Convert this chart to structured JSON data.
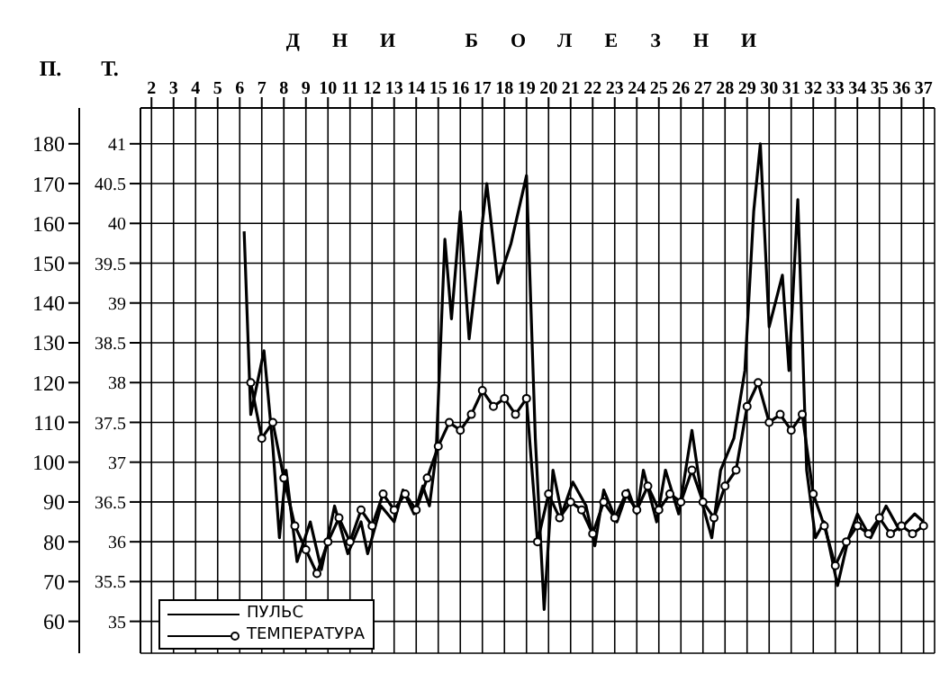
{
  "chart_data": {
    "type": "line",
    "xlabel": "ДНИ БОЛЕЗНИ",
    "ylabel": "П.",
    "y2label": "Т.",
    "xlim": [
      1.5,
      37.5
    ],
    "xticks": [
      2,
      3,
      4,
      5,
      6,
      7,
      8,
      9,
      10,
      11,
      12,
      13,
      14,
      15,
      16,
      17,
      18,
      19,
      20,
      21,
      22,
      23,
      24,
      25,
      26,
      27,
      28,
      29,
      30,
      31,
      32,
      33,
      34,
      35,
      36,
      37
    ],
    "ylim": [
      52,
      189
    ],
    "yticks": [
      60,
      70,
      80,
      90,
      100,
      110,
      120,
      130,
      140,
      150,
      160,
      170,
      180
    ],
    "y2lim": [
      34.6,
      41.45
    ],
    "y2ticks": [
      35,
      35.5,
      36,
      36.5,
      37,
      37.5,
      38,
      38.5,
      39,
      39.5,
      40,
      40.5,
      41
    ],
    "grid": true,
    "legend": "bottom left",
    "series": [
      {
        "name": "ПУЛЬС",
        "color": "#000000",
        "x": [
          6.2,
          6.5,
          7.1,
          7.5,
          7.8,
          8.1,
          8.6,
          9.2,
          9.7,
          10.3,
          10.9,
          11.5,
          11.8,
          12.4,
          13,
          13.4,
          13.9,
          14.3,
          14.6,
          14.9,
          15.3,
          15.6,
          16,
          16.4,
          17.2,
          17.7,
          18.3,
          19,
          19.4,
          19.8,
          20.2,
          20.6,
          21.1,
          21.7,
          22.1,
          22.5,
          23.1,
          23.6,
          24,
          24.3,
          24.9,
          25.3,
          25.9,
          26.5,
          27,
          27.4,
          27.8,
          28.4,
          28.9,
          29.3,
          29.6,
          30,
          30.6,
          30.9,
          31.3,
          31.7,
          32.1,
          32.5,
          33.1,
          33.6,
          34,
          34.6,
          35.3,
          35.9,
          36.6,
          37
        ],
        "values": [
          158,
          112,
          128,
          104,
          81,
          98,
          75,
          85,
          73,
          89,
          77,
          85,
          77,
          89,
          85,
          93,
          87,
          94,
          89,
          102,
          156,
          136,
          163,
          131,
          170,
          145,
          155,
          172,
          106,
          63,
          98,
          87,
          95,
          89,
          79,
          93,
          85,
          93,
          87,
          98,
          85,
          98,
          87,
          108,
          89,
          81,
          98,
          106,
          123,
          163,
          180,
          134,
          147,
          123,
          166,
          98,
          81,
          85,
          69,
          81,
          87,
          81,
          89,
          83,
          87,
          85
        ]
      },
      {
        "name": "ТЕМПЕРАТУРА",
        "color": "#000000",
        "marker": "circle",
        "axis": "y2",
        "x": [
          6.5,
          7,
          7.5,
          8,
          8.5,
          9,
          9.5,
          10,
          10.5,
          11,
          11.5,
          12,
          12.5,
          13,
          13.5,
          14,
          14.5,
          15,
          15.5,
          16,
          16.5,
          17,
          17.5,
          18,
          18.5,
          19,
          19.5,
          20,
          20.5,
          21,
          21.5,
          22,
          22.5,
          23,
          23.5,
          24,
          24.5,
          25,
          25.5,
          26,
          26.5,
          27,
          27.5,
          28,
          28.5,
          29,
          29.5,
          30,
          30.5,
          31,
          31.5,
          32,
          32.5,
          33,
          33.5,
          34,
          34.5,
          35,
          35.5,
          36,
          36.5,
          37
        ],
        "values": [
          38,
          37.3,
          37.5,
          36.8,
          36.2,
          35.9,
          35.6,
          36,
          36.3,
          36,
          36.4,
          36.2,
          36.6,
          36.4,
          36.6,
          36.4,
          36.8,
          37.2,
          37.5,
          37.4,
          37.6,
          37.9,
          37.7,
          37.8,
          37.6,
          37.8,
          36,
          36.6,
          36.3,
          36.5,
          36.4,
          36.1,
          36.5,
          36.3,
          36.6,
          36.4,
          36.7,
          36.4,
          36.6,
          36.5,
          36.9,
          36.5,
          36.3,
          36.7,
          36.9,
          37.7,
          38,
          37.5,
          37.6,
          37.4,
          37.6,
          36.6,
          36.2,
          35.7,
          36,
          36.2,
          36.1,
          36.3,
          36.1,
          36.2,
          36.1,
          36.2
        ]
      }
    ]
  }
}
